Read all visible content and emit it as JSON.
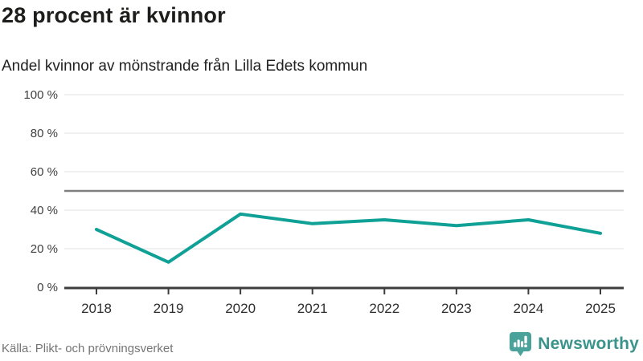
{
  "header": {
    "title": "28 procent är kvinnor",
    "subtitle": "Andel kvinnor av mönstrande från Lilla Edets kommun"
  },
  "chart_data": {
    "type": "line",
    "x": [
      2018,
      2019,
      2020,
      2021,
      2022,
      2023,
      2024,
      2025
    ],
    "values": [
      30,
      13,
      38,
      33,
      35,
      32,
      35,
      28
    ],
    "title": "28 procent är kvinnor",
    "subtitle": "Andel kvinnor av mönstrande från Lilla Edets kommun",
    "xlabel": "",
    "ylabel": "",
    "unit": "%",
    "ylim": [
      0,
      100
    ],
    "yticks": [
      0,
      20,
      40,
      60,
      80,
      100
    ],
    "ytick_suffix": " %",
    "reference_line": 50,
    "grid": true,
    "legend": "none",
    "line_color": "#0fa096",
    "reference_color": "#7f7f7f",
    "grid_color": "#e2e2e2",
    "axis_color": "#3d3d3d",
    "ylabel_color": "#3f3f3f",
    "xlabel_color": "#2e2e2e"
  },
  "footer": {
    "source": "Källa: Plikt- och prövningsverket",
    "brand": "Newsworthy",
    "brand_color": "#3a948b"
  }
}
